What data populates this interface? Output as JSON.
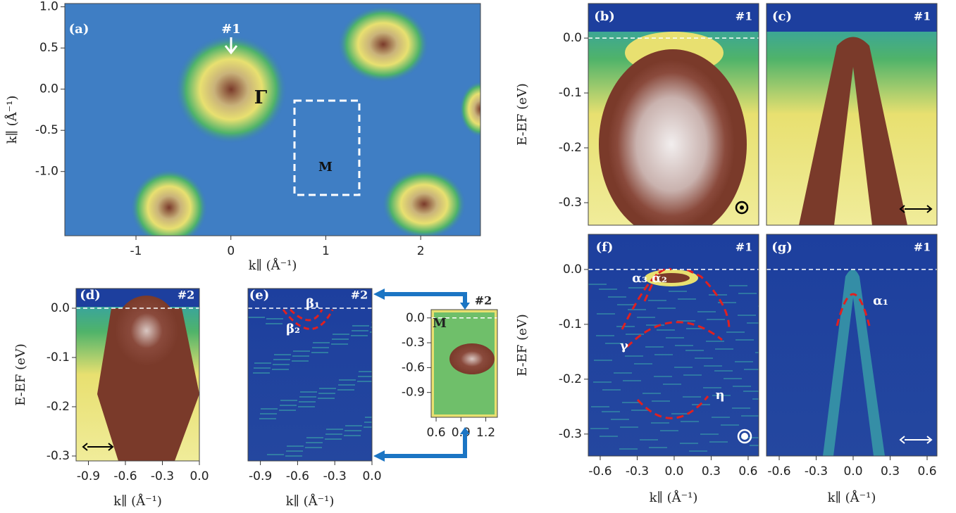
{
  "panels": [
    {
      "label": "(a)",
      "annotations": [
        "#1",
        "Γ",
        "M"
      ],
      "xlabel": "k∥ (Å⁻¹)",
      "ylabel": "k∥ (Å⁻¹)",
      "xlim": [
        -1.75,
        2.63
      ],
      "ylim": [
        -1.78,
        1.04
      ],
      "xticks": [
        -1,
        0,
        1,
        2
      ],
      "yticks": [
        {
          "value": 1,
          "label": "1.0"
        },
        0.5,
        {
          "value": 0,
          "label": "0.0"
        },
        -0.5,
        {
          "value": -1,
          "label": "-1.0"
        }
      ]
    },
    {
      "label": "(b)",
      "tag": "#1",
      "ylabel": "E-EF (eV)",
      "ylim": [
        -0.341,
        0.063
      ],
      "yticks": [
        {
          "value": 0,
          "label": "0.0"
        },
        -0.1,
        -0.2,
        -0.3
      ]
    },
    {
      "label": "(c)",
      "tag": "#1"
    },
    {
      "label": "(d)",
      "tag": "#2",
      "xlabel": "k∥ (Å⁻¹)",
      "ylabel": "E-EF (eV)",
      "xlim": [
        -1.0,
        0.0
      ],
      "ylim": [
        -0.31,
        0.04
      ],
      "xticks": [
        -0.9,
        -0.6,
        -0.3,
        {
          "value": 0,
          "label": "0.0"
        }
      ],
      "yticks": [
        {
          "value": 0,
          "label": "0.0"
        },
        -0.1,
        -0.2,
        -0.3
      ]
    },
    {
      "label": "(e)",
      "tag": "#2",
      "annotations": [
        "β₁",
        "β₂"
      ],
      "xlabel": "k∥ (Å⁻¹)",
      "xlim": [
        -1.0,
        0.0
      ],
      "ylim": [
        -0.31,
        0.04
      ],
      "xticks": [
        -0.9,
        -0.6,
        -0.3,
        {
          "value": 0,
          "label": "0.0"
        }
      ]
    },
    {
      "tag": "#2",
      "annotations": [
        "M"
      ],
      "xlim": [
        0.54,
        1.34
      ],
      "ylim": [
        -1.2,
        0.1
      ],
      "xticks": [
        0.6,
        0.9,
        1.2
      ],
      "yticks": [
        {
          "value": 0,
          "label": "0.0"
        },
        -0.3,
        -0.6,
        -0.9
      ]
    },
    {
      "label": "(f)",
      "tag": "#1",
      "annotations": [
        "α₃ α₂",
        "γ",
        "η"
      ],
      "xlabel": "k∥ (Å⁻¹)",
      "ylabel": "E-EF (eV)",
      "xlim": [
        -0.697,
        0.686
      ],
      "ylim": [
        -0.34,
        0.064
      ],
      "xticks": [
        -0.6,
        -0.3,
        {
          "value": 0,
          "label": "0.0"
        },
        0.3,
        0.6
      ],
      "yticks": [
        {
          "value": 0,
          "label": "0.0"
        },
        -0.1,
        -0.2,
        -0.3
      ]
    },
    {
      "label": "(g)",
      "tag": "#1",
      "annotations": [
        "α₁"
      ],
      "xlabel": "k∥ (Å⁻¹)",
      "xlim": [
        -0.703,
        0.68
      ],
      "ylim": [
        -0.34,
        0.064
      ],
      "xticks": [
        -0.6,
        -0.3,
        {
          "value": 0,
          "label": "0.0"
        },
        0.3,
        0.6
      ]
    }
  ]
}
